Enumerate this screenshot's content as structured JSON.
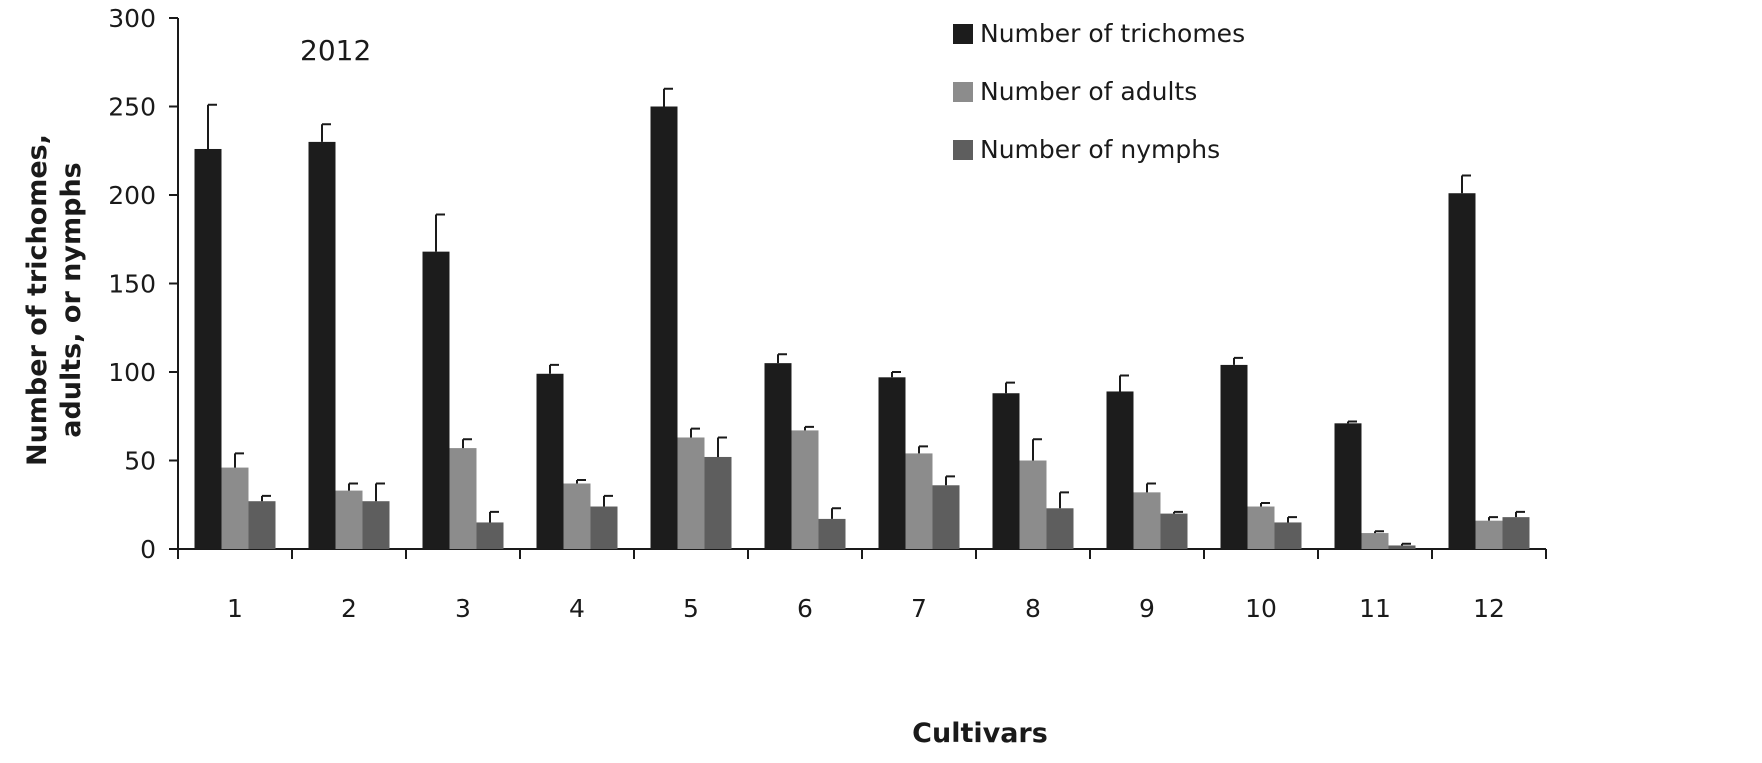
{
  "chart_data": {
    "type": "bar",
    "annotation": "2012",
    "xlabel": "Cultivars",
    "ylabel_lines": [
      "Number of trichomes,",
      "adults, or nymphs"
    ],
    "ylim": [
      0,
      300
    ],
    "yticks": [
      0,
      50,
      100,
      150,
      200,
      250,
      300
    ],
    "grid": false,
    "legend_position": "top-right",
    "categories": [
      "1",
      "2",
      "3",
      "4",
      "5",
      "6",
      "7",
      "8",
      "9",
      "10",
      "11",
      "12"
    ],
    "series": [
      {
        "name": "Number of trichomes",
        "color": "#1c1c1c",
        "values": [
          226,
          230,
          168,
          99,
          250,
          105,
          97,
          88,
          89,
          104,
          71,
          201
        ],
        "errors": [
          25,
          10,
          21,
          5,
          10,
          5,
          3,
          6,
          9,
          4,
          1,
          10
        ]
      },
      {
        "name": "Number of adults",
        "color": "#8c8c8c",
        "values": [
          46,
          33,
          57,
          37,
          63,
          67,
          54,
          50,
          32,
          24,
          9,
          16
        ],
        "errors": [
          8,
          4,
          5,
          2,
          5,
          2,
          4,
          12,
          5,
          2,
          1,
          2
        ]
      },
      {
        "name": "Number of nymphs",
        "color": "#5e5e5e",
        "values": [
          27,
          27,
          15,
          24,
          52,
          17,
          36,
          23,
          20,
          15,
          2,
          18
        ],
        "errors": [
          3,
          10,
          6,
          6,
          11,
          6,
          5,
          9,
          1,
          3,
          1,
          3
        ]
      }
    ]
  }
}
